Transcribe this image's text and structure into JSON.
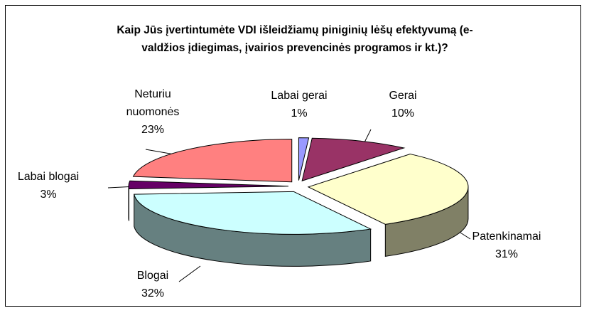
{
  "chart_data": {
    "type": "pie",
    "title": "Kaip Jūs įvertintumėte VDI išleidžiamų piniginių lėšų efektyvumą (e-valdžios įdiegimas, įvairios prevencinės programos ir kt.)?",
    "categories": [
      "Labai gerai",
      "Gerai",
      "Patenkinamai",
      "Blogai",
      "Labai blogai",
      "Neturiu nuomonės"
    ],
    "values": [
      1,
      10,
      31,
      32,
      3,
      23
    ],
    "value_labels": [
      "1%",
      "10%",
      "31%",
      "32%",
      "3%",
      "23%"
    ],
    "colors": [
      "#9999ff",
      "#993366",
      "#ffffcc",
      "#ccffff",
      "#660066",
      "#ff8080"
    ]
  }
}
